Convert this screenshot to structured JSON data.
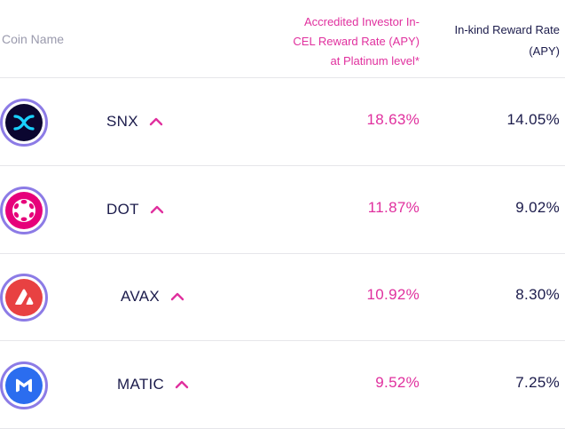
{
  "header": {
    "coin_name": "Coin Name",
    "cel_rate_line1": "Accredited Investor In-",
    "cel_rate_line2": "CEL Reward Rate (APY)",
    "cel_rate_line3": "at Platinum level*",
    "inkind_line1": "In-kind Reward Rate",
    "inkind_line2": "(APY)"
  },
  "colors": {
    "accent_pink": "#e0309e",
    "text_navy": "#1b1b4b",
    "ring_purple": "#8c7be6"
  },
  "rows": [
    {
      "symbol": "SNX",
      "icon": "snx-icon",
      "cel_rate": "18.63%",
      "inkind_rate": "14.05%",
      "expand_icon": "chevron-up-icon"
    },
    {
      "symbol": "DOT",
      "icon": "dot-icon",
      "cel_rate": "11.87%",
      "inkind_rate": "9.02%",
      "expand_icon": "chevron-up-icon"
    },
    {
      "symbol": "AVAX",
      "icon": "avax-icon",
      "cel_rate": "10.92%",
      "inkind_rate": "8.30%",
      "expand_icon": "chevron-up-icon"
    },
    {
      "symbol": "MATIC",
      "icon": "matic-icon",
      "cel_rate": "9.52%",
      "inkind_rate": "7.25%",
      "expand_icon": "chevron-up-icon"
    }
  ]
}
